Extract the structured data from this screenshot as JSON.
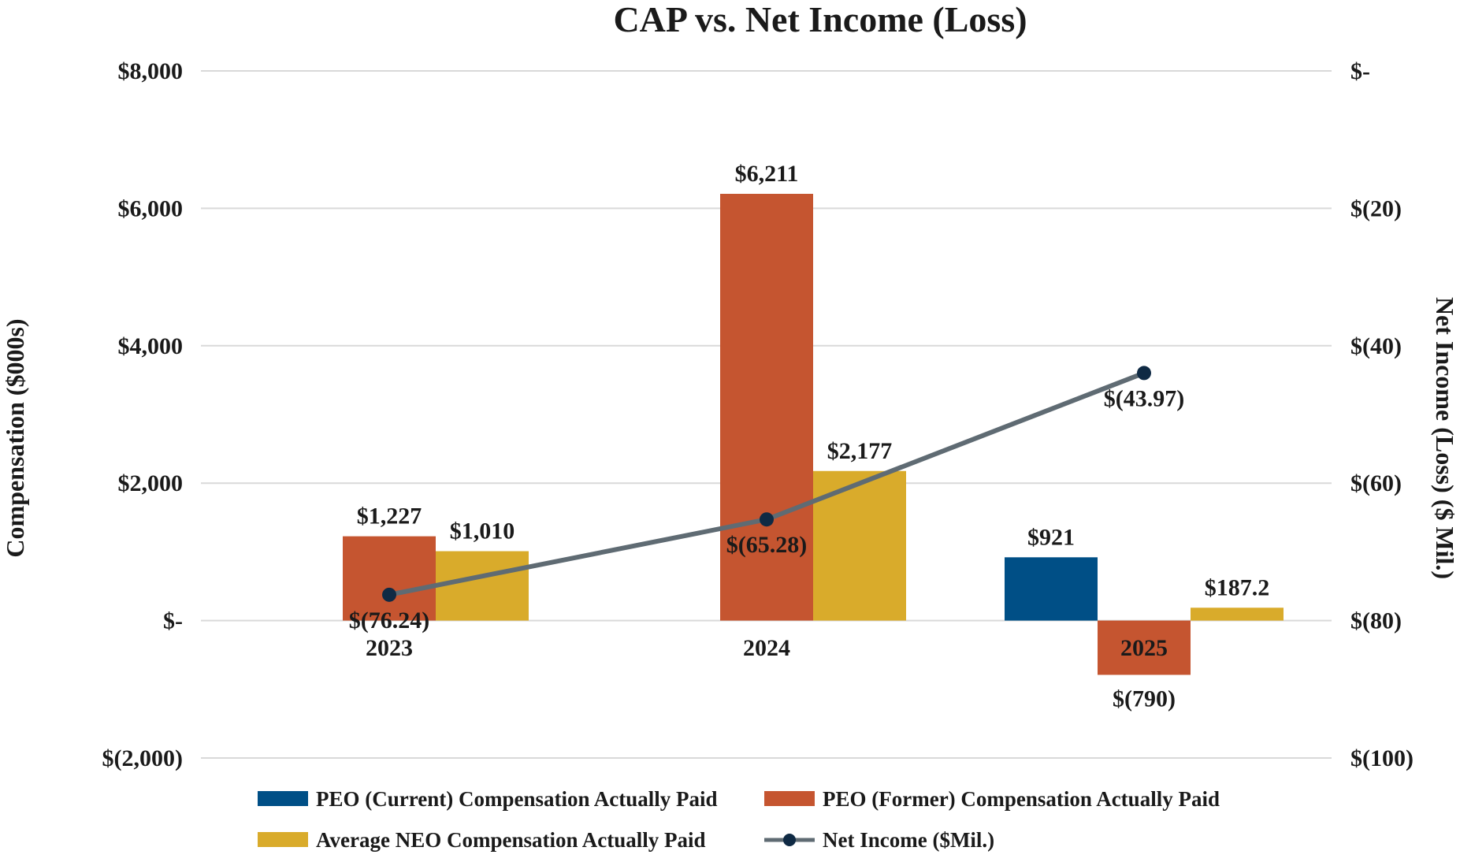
{
  "chart_data": {
    "type": "bar",
    "title": "CAP vs. Net Income (Loss)",
    "categories": [
      "2023",
      "2024",
      "2025"
    ],
    "ylabel": "Compensation ($000s)",
    "y2label": "Net Income (Loss) ($ Mil.)",
    "ylim": [
      -2000,
      8000
    ],
    "y2lim": [
      -100,
      0
    ],
    "yticks": [
      8000,
      6000,
      4000,
      2000,
      0,
      -2000
    ],
    "ytick_labels": [
      "$8,000",
      "$6,000",
      "$4,000",
      "$2,000",
      "$-",
      "$(2,000)"
    ],
    "y2ticks": [
      0,
      -20,
      -40,
      -60,
      -80,
      -100
    ],
    "y2tick_labels": [
      "$-",
      "$(20)",
      "$(40)",
      "$(60)",
      "$(80)",
      "$(100)"
    ],
    "grid": true,
    "legend_position": "bottom",
    "series": [
      {
        "name": "PEO (Current) Compensation Actually Paid",
        "color": "#004f86",
        "axis": "left",
        "values": [
          null,
          null,
          921
        ],
        "labels": [
          null,
          null,
          "$921"
        ]
      },
      {
        "name": "PEO (Former) Compensation Actually Paid",
        "color": "#c55530",
        "axis": "left",
        "values": [
          1227,
          6211,
          -790
        ],
        "labels": [
          "$1,227",
          "$6,211",
          "$(790)"
        ]
      },
      {
        "name": "Average NEO Compensation Actually Paid",
        "color": "#d9ab2b",
        "axis": "left",
        "values": [
          1010,
          2177,
          187.2
        ],
        "labels": [
          "$1,010",
          "$2,177",
          "$187.2"
        ]
      },
      {
        "name": "Net Income ($Mil.)",
        "type": "line",
        "color": "#5f6b73",
        "marker_color": "#0f2a44",
        "axis": "right",
        "values": [
          -76.24,
          -65.28,
          -43.97
        ],
        "labels": [
          "$(76.24)",
          "$(65.28)",
          "$(43.97)"
        ]
      }
    ]
  }
}
